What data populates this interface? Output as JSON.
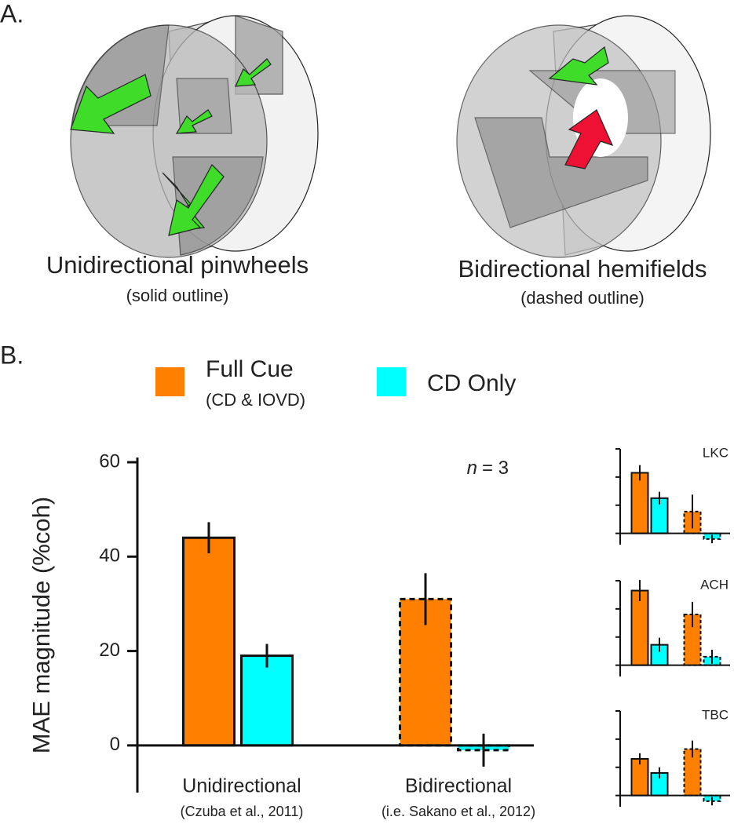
{
  "panel_a": {
    "label": "A.",
    "illustrations": [
      {
        "title": "Unidirectional pinwheels",
        "subtitle": "(solid outline)"
      },
      {
        "title": "Bidirectional hemifields",
        "subtitle": "(dashed outline)"
      }
    ]
  },
  "panel_b": {
    "label": "B."
  },
  "chart_data": [
    {
      "type": "bar",
      "ylabel": "MAE magnitude (%coh)",
      "annotation": {
        "italic": "n",
        "text": "= 3"
      },
      "categories": [
        "Unidirectional",
        "Bidirectional"
      ],
      "category_notes": [
        "(Czuba et al., 2011)",
        "(i.e. Sakano et al., 2012)"
      ],
      "outline": [
        "solid",
        "dashed"
      ],
      "series": [
        {
          "name": "Full Cue",
          "note": "(CD & IOVD)",
          "color": "#ff8000",
          "values": [
            44,
            31
          ],
          "errors": [
            3.3,
            5.5
          ]
        },
        {
          "name": "CD Only",
          "color": "#00ffff",
          "values": [
            19,
            -1
          ],
          "errors": [
            2.5,
            3.5
          ]
        }
      ],
      "ylim": [
        -10,
        61
      ],
      "yticks": [
        0,
        20,
        40,
        60
      ]
    },
    {
      "type": "bar",
      "title": "LKC",
      "outline": [
        "solid",
        "dashed"
      ],
      "series": [
        {
          "color": "#ff8000",
          "values": [
            43,
            15.5
          ],
          "errors": [
            5.5,
            12
          ]
        },
        {
          "color": "#00ffff",
          "values": [
            25,
            -4
          ],
          "errors": [
            4.5,
            3
          ]
        }
      ],
      "ylim": [
        -8,
        60
      ],
      "yticks": [
        0,
        20,
        40,
        60
      ]
    },
    {
      "type": "bar",
      "title": "ACH",
      "outline": [
        "solid",
        "dashed"
      ],
      "series": [
        {
          "color": "#ff8000",
          "values": [
            53,
            36
          ],
          "errors": [
            7.5,
            9
          ]
        },
        {
          "color": "#00ffff",
          "values": [
            14.5,
            6
          ],
          "errors": [
            5,
            5
          ]
        }
      ],
      "ylim": [
        -8,
        60
      ],
      "yticks": [
        0,
        20,
        40,
        60
      ]
    },
    {
      "type": "bar",
      "title": "TBC",
      "outline": [
        "solid",
        "dashed"
      ],
      "series": [
        {
          "color": "#ff8000",
          "values": [
            26,
            33
          ],
          "errors": [
            4,
            6
          ]
        },
        {
          "color": "#00ffff",
          "values": [
            16,
            -4
          ],
          "errors": [
            4,
            3
          ]
        }
      ],
      "ylim": [
        -8,
        60
      ],
      "yticks": [
        0,
        20,
        40,
        60
      ]
    }
  ]
}
